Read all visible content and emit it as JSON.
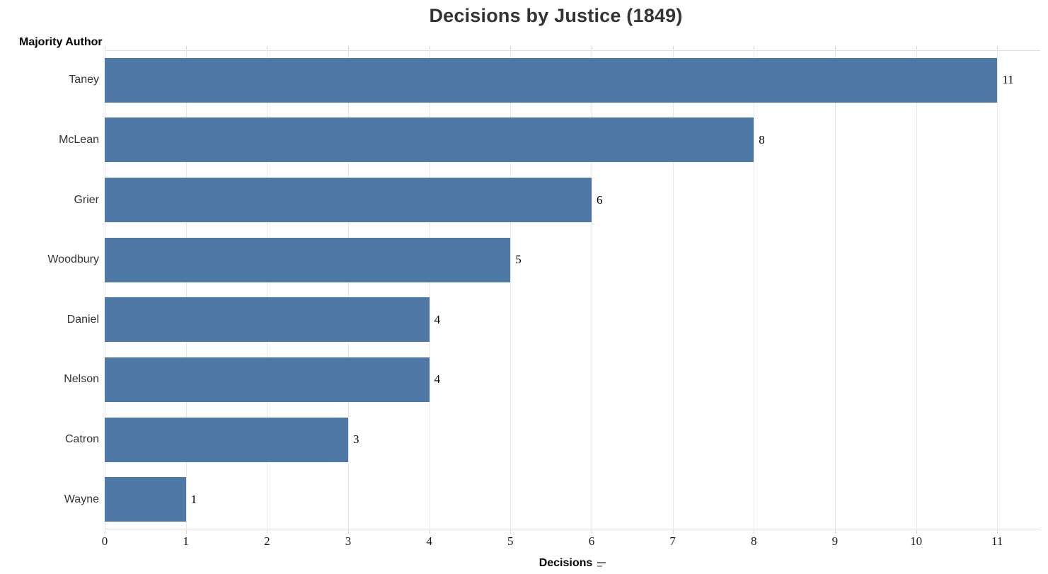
{
  "title": "Decisions by Justice (1849)",
  "row_axis": {
    "header": "Majority Author"
  },
  "x_axis": {
    "title": "Decisions",
    "ticks": [
      0,
      1,
      2,
      3,
      4,
      5,
      6,
      7,
      8,
      9,
      10,
      11
    ],
    "sort_indicator": "descending"
  },
  "colors": {
    "bar": "#4e79a7",
    "gridline": "#e8e8e8",
    "pane_border": "#dedede",
    "tick": "#d4d4d4",
    "title_text": "#333333",
    "label_text": "#333333"
  },
  "chart_data": {
    "type": "bar",
    "orientation": "horizontal",
    "title": "Decisions by Justice (1849)",
    "xlabel": "Decisions",
    "ylabel": "Majority Author",
    "categories": [
      "Taney",
      "McLean",
      "Grier",
      "Woodbury",
      "Daniel",
      "Nelson",
      "Catron",
      "Wayne"
    ],
    "values": [
      11,
      8,
      6,
      5,
      4,
      4,
      3,
      1
    ],
    "xlim": [
      0,
      11.53
    ],
    "xticks": [
      0,
      1,
      2,
      3,
      4,
      5,
      6,
      7,
      8,
      9,
      10,
      11
    ],
    "grid": true,
    "legend": false,
    "sort": "descending",
    "bar_labels": true
  }
}
